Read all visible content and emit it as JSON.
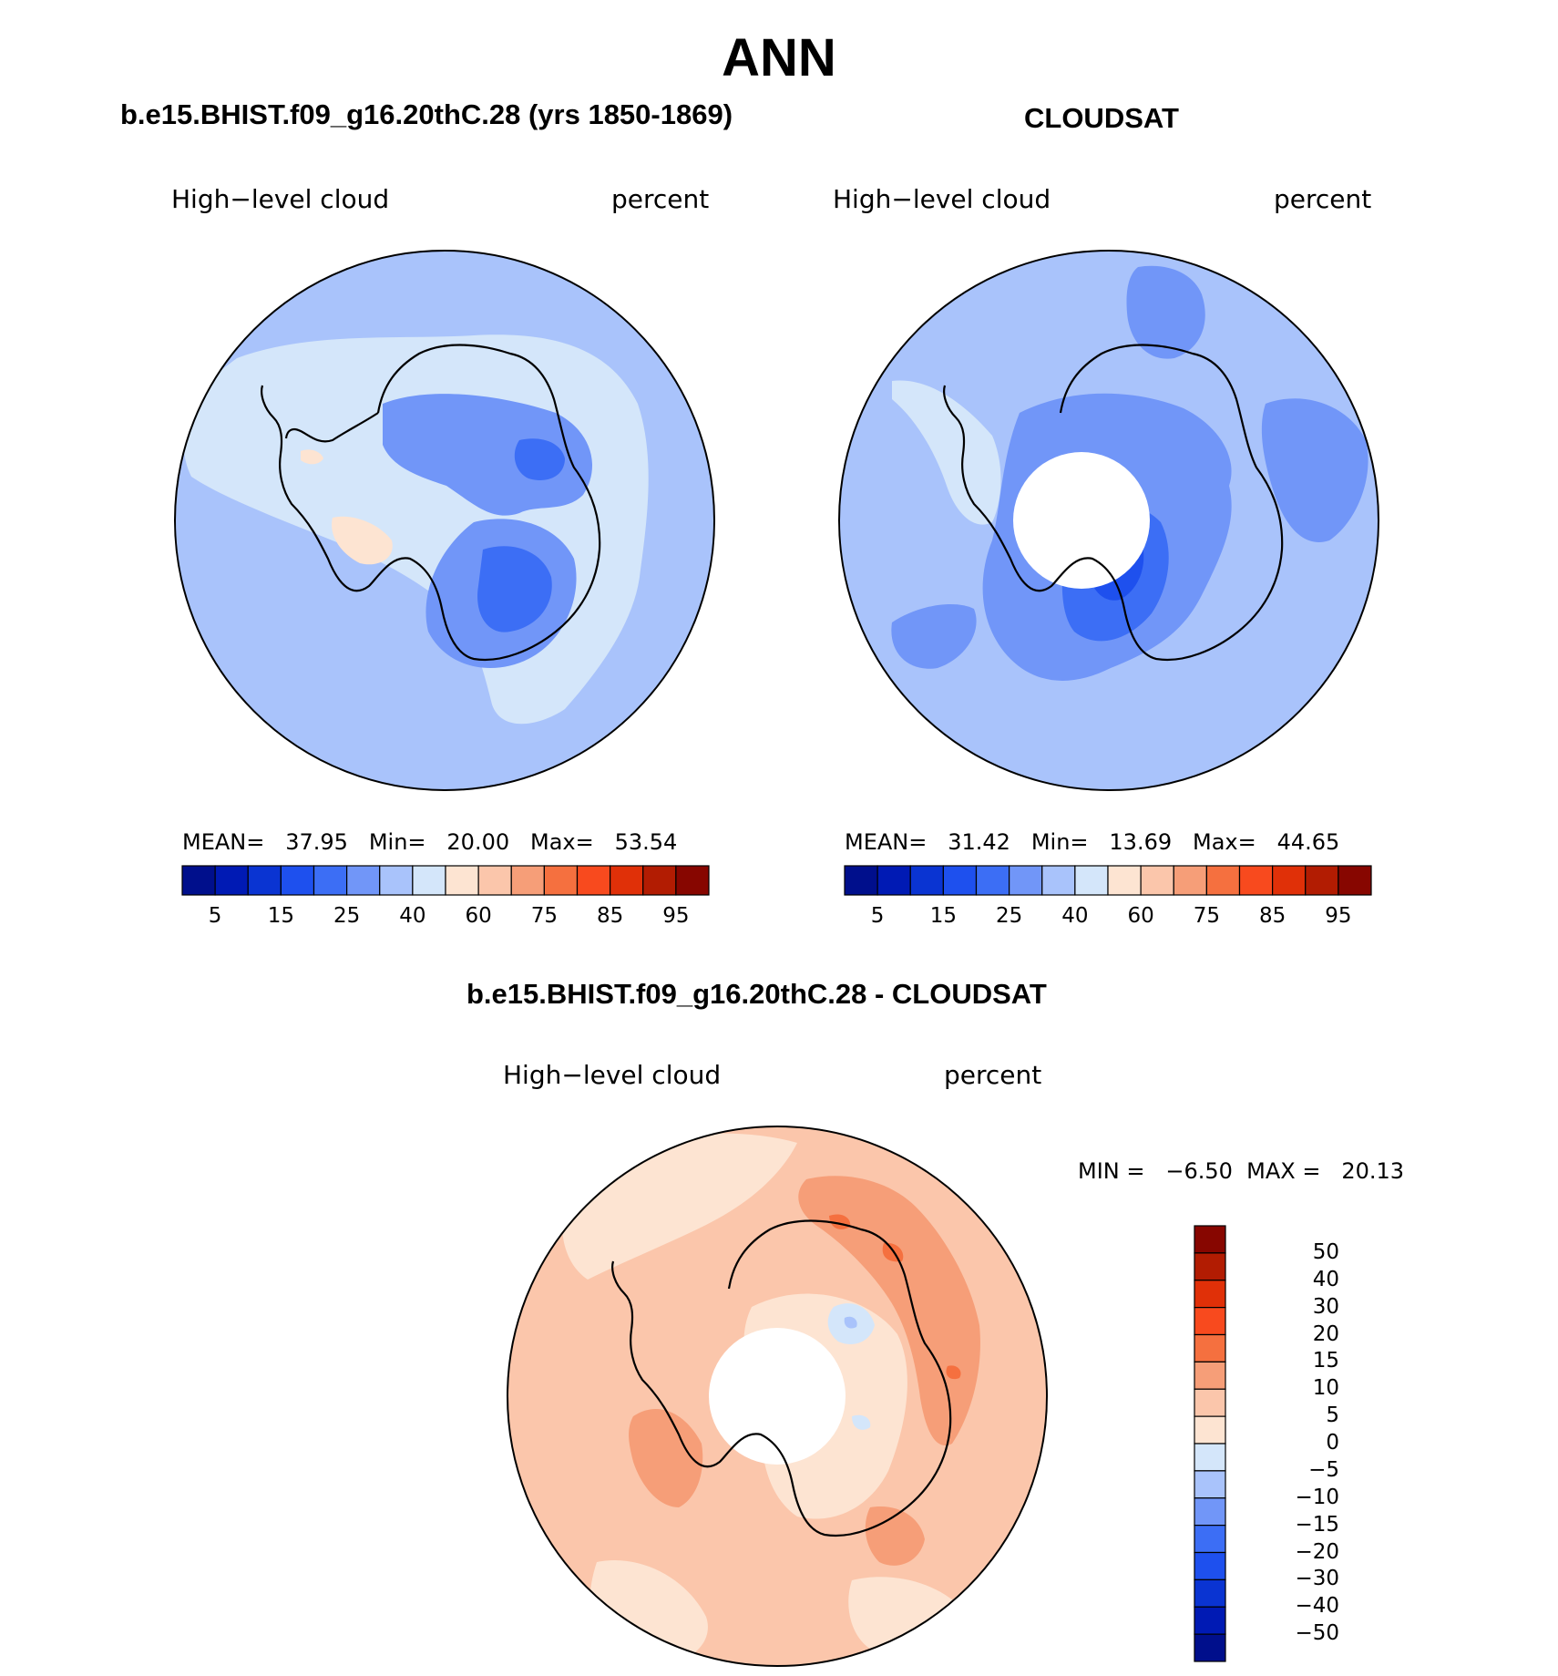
{
  "title": "ANN",
  "panels": {
    "left": {
      "header": "b.e15.BHIST.f09_g16.20thC.28 (yrs 1850-1869)",
      "variable_label": "High−level cloud",
      "units_label": "percent",
      "stats": "MEAN=   37.95   Min=   20.00   Max=   53.54"
    },
    "right": {
      "header": "CLOUDSAT",
      "variable_label": "High−level cloud",
      "units_label": "percent",
      "stats": "MEAN=   31.42   Min=   13.69   Max=   44.65"
    },
    "diff": {
      "header": "b.e15.BHIST.f09_g16.20thC.28 - CLOUDSAT",
      "variable_label": "High−level cloud",
      "units_label": "percent",
      "stats": "MIN =   −6.50  MAX =   20.13"
    }
  },
  "colorbar_abs": {
    "colors": [
      "#000f8c",
      "#001ab4",
      "#0a34d2",
      "#1e50ee",
      "#3c6ef5",
      "#7196f8",
      "#a9c3fb",
      "#d4e6fa",
      "#fde4d2",
      "#fbc6ab",
      "#f69e78",
      "#f5703f",
      "#f84a1e",
      "#e03008",
      "#b21c02",
      "#870600"
    ],
    "tick_labels": [
      "5",
      "15",
      "25",
      "40",
      "60",
      "75",
      "85",
      "95"
    ]
  },
  "colorbar_diff": {
    "colors_top_to_bottom": [
      "#870600",
      "#b21c02",
      "#e03008",
      "#f84a1e",
      "#f5703f",
      "#f69e78",
      "#fbc6ab",
      "#fde4d2",
      "#d4e6fa",
      "#a9c3fb",
      "#7196f8",
      "#3c6ef5",
      "#1e50ee",
      "#0a34d2",
      "#001ab4",
      "#000f8c"
    ],
    "tick_labels": [
      "50",
      "40",
      "30",
      "20",
      "15",
      "10",
      "5",
      "0",
      "−5",
      "−10",
      "−15",
      "−20",
      "−30",
      "−40",
      "−50"
    ]
  }
}
